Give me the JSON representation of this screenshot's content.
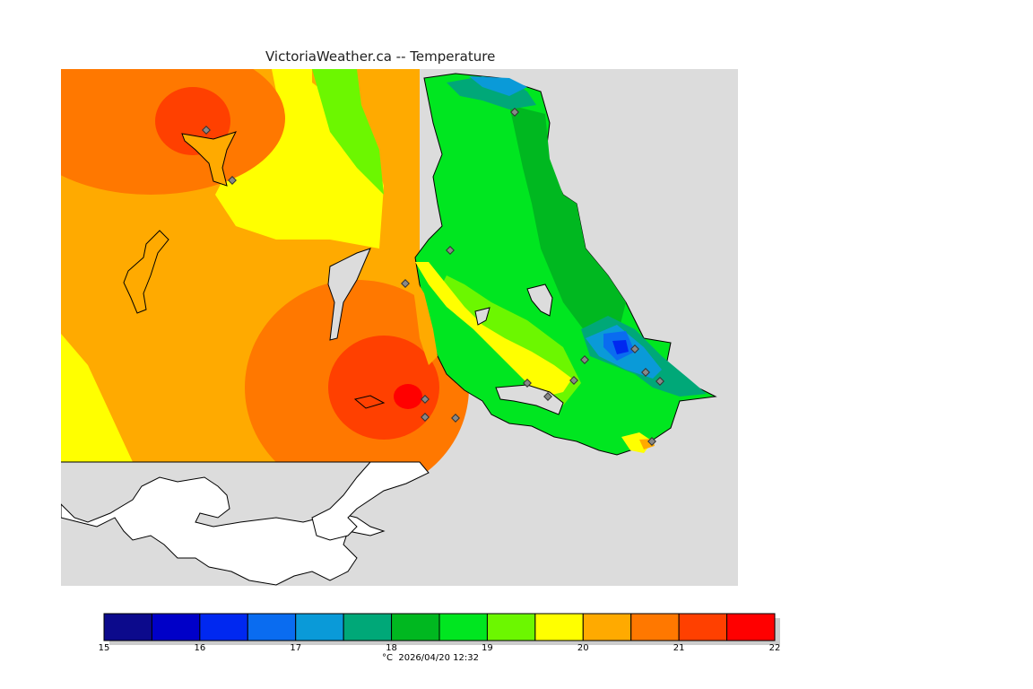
{
  "title": "VictoriaWeather.ca -- Temperature",
  "footer": "°C  2026/04/20 12:32",
  "legend": {
    "min": 15,
    "max": 22,
    "step": 0.5,
    "tick_labels": [
      "15",
      "16",
      "17",
      "18",
      "19",
      "20",
      "21",
      "22"
    ],
    "bin_colors": [
      "#0c0a8c",
      "#0000c8",
      "#0028f0",
      "#0a6cf0",
      "#0a9ad8",
      "#00a878",
      "#00b820",
      "#00e620",
      "#6cf700",
      "#ffff00",
      "#ffaa00",
      "#ff7800",
      "#ff4000",
      "#ff0000"
    ]
  },
  "colors": {
    "water": "#dcdcdc",
    "land_outside": "#ffffff",
    "coast": "#000000",
    "station_marker": "#888888"
  },
  "icons": {
    "station": "diamond-marker"
  }
}
